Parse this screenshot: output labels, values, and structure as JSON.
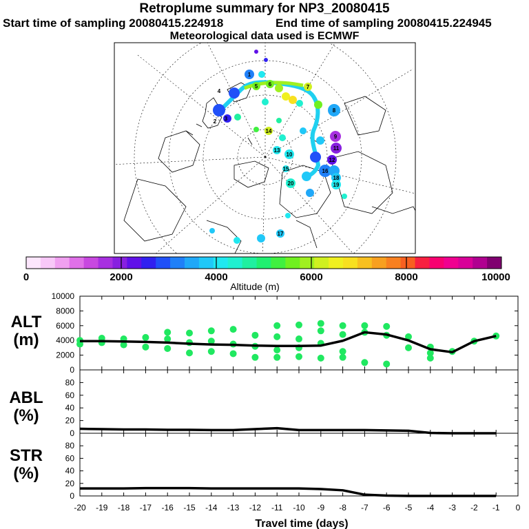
{
  "header": {
    "title": "Retroplume summary for NP3_20080415",
    "start": "Start time of sampling 20080415.224918",
    "end": "End time of sampling 20080415.224945",
    "met": "Meteorological data used is ECMWF"
  },
  "colorbar": {
    "label": "Altitude (m)",
    "ticks": [
      "0",
      "2000",
      "4000",
      "6000",
      "8000",
      "10000"
    ],
    "colors": [
      "#fce6fc",
      "#f8c8f8",
      "#f0a0f0",
      "#e070e8",
      "#c848e0",
      "#a830e0",
      "#8820e0",
      "#6010e8",
      "#3020f0",
      "#2050f8",
      "#2080f8",
      "#20a8f8",
      "#20c8f8",
      "#20e8f0",
      "#20f0d0",
      "#20f0a0",
      "#20f070",
      "#40f040",
      "#70f020",
      "#a0f020",
      "#d0f020",
      "#f0f020",
      "#f8e020",
      "#f8c020",
      "#f8a020",
      "#f88020",
      "#f86020",
      "#f82040",
      "#f80070",
      "#f00090",
      "#d80098",
      "#b00090",
      "#800070"
    ]
  },
  "map": {
    "labels": [
      "1",
      "2",
      "3",
      "4",
      "5",
      "6",
      "7",
      "8",
      "9",
      "10",
      "11",
      "12",
      "13",
      "14",
      "15",
      "16",
      "17",
      "18",
      "19",
      "20"
    ]
  },
  "panels": {
    "alt": {
      "label_line1": "ALT",
      "label_line2": "(m)"
    },
    "abl": {
      "label_line1": "ABL",
      "label_line2": "(%)"
    },
    "str": {
      "label_line1": "STR",
      "label_line2": "(%)"
    }
  },
  "chart_data": [
    {
      "type": "line",
      "name": "ALT",
      "ylabel": "ALT (m)",
      "ylim": [
        0,
        10000
      ],
      "yticks": [
        "10000",
        "8000",
        "6000",
        "4000",
        "2000",
        "0"
      ],
      "x": [
        -20,
        -19,
        -18,
        -17,
        -16,
        -15,
        -14,
        -13,
        -12,
        -11,
        -10,
        -9,
        -8,
        -7,
        -6,
        -5,
        -4,
        -3,
        -2,
        -1
      ],
      "mean": [
        3900,
        3900,
        3850,
        3800,
        3700,
        3550,
        3450,
        3400,
        3300,
        3250,
        3250,
        3300,
        3950,
        5100,
        4800,
        4000,
        2800,
        2400,
        3900,
        4600
      ],
      "cluster_points": [
        {
          "x": -20,
          "y": 4000
        },
        {
          "x": -20,
          "y": 3500
        },
        {
          "x": -19,
          "y": 4300
        },
        {
          "x": -19,
          "y": 3700
        },
        {
          "x": -18,
          "y": 4200
        },
        {
          "x": -18,
          "y": 3400
        },
        {
          "x": -17,
          "y": 4400
        },
        {
          "x": -17,
          "y": 3100
        },
        {
          "x": -16,
          "y": 5100
        },
        {
          "x": -16,
          "y": 4200
        },
        {
          "x": -16,
          "y": 2900
        },
        {
          "x": -15,
          "y": 5000
        },
        {
          "x": -15,
          "y": 3700
        },
        {
          "x": -15,
          "y": 2300
        },
        {
          "x": -14,
          "y": 5300
        },
        {
          "x": -14,
          "y": 3900
        },
        {
          "x": -14,
          "y": 2500
        },
        {
          "x": -13,
          "y": 5500
        },
        {
          "x": -13,
          "y": 3500
        },
        {
          "x": -13,
          "y": 2200
        },
        {
          "x": -12,
          "y": 4700
        },
        {
          "x": -12,
          "y": 3200
        },
        {
          "x": -12,
          "y": 1700
        },
        {
          "x": -11,
          "y": 6000
        },
        {
          "x": -11,
          "y": 4500
        },
        {
          "x": -11,
          "y": 2700
        },
        {
          "x": -11,
          "y": 1700
        },
        {
          "x": -10,
          "y": 6100
        },
        {
          "x": -10,
          "y": 4200
        },
        {
          "x": -10,
          "y": 3000
        },
        {
          "x": -10,
          "y": 1800
        },
        {
          "x": -9,
          "y": 6300
        },
        {
          "x": -9,
          "y": 5300
        },
        {
          "x": -9,
          "y": 3600
        },
        {
          "x": -9,
          "y": 1600
        },
        {
          "x": -8,
          "y": 6000
        },
        {
          "x": -8,
          "y": 4800
        },
        {
          "x": -8,
          "y": 2500
        },
        {
          "x": -8,
          "y": 1700
        },
        {
          "x": -7,
          "y": 6000
        },
        {
          "x": -7,
          "y": 5100
        },
        {
          "x": -7,
          "y": 1000
        },
        {
          "x": -6,
          "y": 5900
        },
        {
          "x": -6,
          "y": 4700
        },
        {
          "x": -6,
          "y": 800
        },
        {
          "x": -5,
          "y": 4500
        },
        {
          "x": -5,
          "y": 3000
        },
        {
          "x": -4,
          "y": 3100
        },
        {
          "x": -4,
          "y": 2300
        },
        {
          "x": -4,
          "y": 1600
        },
        {
          "x": -3,
          "y": 2500
        },
        {
          "x": -2,
          "y": 3900
        },
        {
          "x": -1,
          "y": 4600
        }
      ]
    },
    {
      "type": "line",
      "name": "ABL",
      "ylabel": "ABL (%)",
      "ylim": [
        0,
        100
      ],
      "yticks": [
        "80",
        "60",
        "40",
        "20",
        "0"
      ],
      "x": [
        -20,
        -19,
        -18,
        -17,
        -16,
        -15,
        -14,
        -13,
        -12,
        -11,
        -10,
        -9,
        -8,
        -7,
        -6,
        -5,
        -4,
        -3,
        -2,
        -1
      ],
      "values": [
        7,
        6.5,
        6,
        6,
        5.5,
        5.5,
        5,
        5,
        6.5,
        8,
        5,
        5,
        5,
        5,
        4.5,
        4,
        0.5,
        0,
        0,
        0
      ]
    },
    {
      "type": "line",
      "name": "STR",
      "ylabel": "STR (%)",
      "ylim": [
        0,
        100
      ],
      "yticks": [
        "80",
        "60",
        "40",
        "20",
        "0"
      ],
      "x": [
        -20,
        -19,
        -18,
        -17,
        -16,
        -15,
        -14,
        -13,
        -12,
        -11,
        -10,
        -9,
        -8,
        -7,
        -6,
        -5,
        -4,
        -3,
        -2,
        -1
      ],
      "values": [
        12,
        12,
        12,
        12.5,
        12.5,
        12.5,
        12,
        12,
        12,
        12,
        12,
        11,
        9,
        2,
        0.5,
        0,
        0,
        0,
        0,
        0
      ],
      "xlabel": "Travel time (days)",
      "xticks": [
        "-20",
        "-19",
        "-18",
        "-17",
        "-16",
        "-15",
        "-14",
        "-13",
        "-12",
        "-11",
        "-10",
        "-9",
        "-8",
        "-7",
        "-6",
        "-5",
        "-4",
        "-3",
        "-2",
        "-1",
        "0"
      ]
    }
  ]
}
